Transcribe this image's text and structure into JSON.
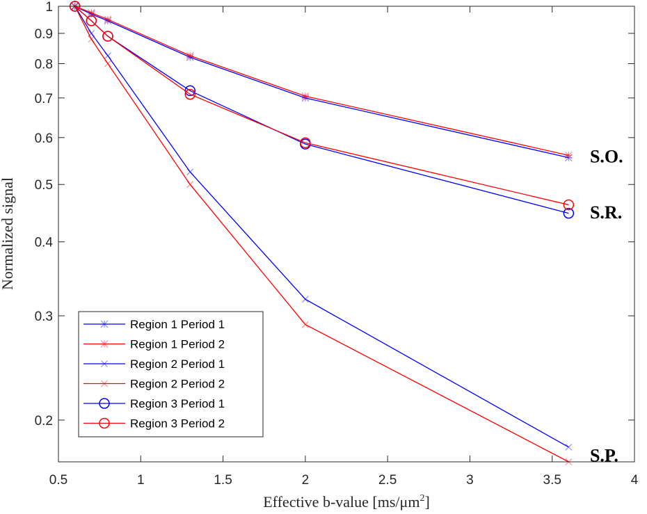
{
  "chart_data": {
    "type": "line",
    "xlabel": "Effective b-value [ms/μm",
    "xlabel_sup": "2",
    "xlabel_close": "]",
    "ylabel": "Normalized signal",
    "yscale": "log",
    "xlim": [
      0.5,
      4
    ],
    "ylim": [
      0.17,
      1
    ],
    "xticks": [
      0.5,
      1,
      1.5,
      2,
      2.5,
      3,
      3.5,
      4
    ],
    "xtick_labels": [
      "0.5",
      "1",
      "1.5",
      "2",
      "2.5",
      "3",
      "3.5",
      "4"
    ],
    "yticks": [
      0.2,
      0.3,
      0.4,
      0.5,
      0.6,
      0.7,
      0.8,
      0.9,
      1
    ],
    "ytick_labels": [
      "0.2",
      "0.3",
      "0.4",
      "0.5",
      "0.6",
      "0.7",
      "0.8",
      "0.9",
      "1"
    ],
    "legend_position": "bottom-left",
    "series": [
      {
        "name": "Region 1 Period 1",
        "color": "#0000ff",
        "marker": "asterisk",
        "x": [
          0.6,
          0.7,
          0.8,
          1.3,
          2.0,
          3.6
        ],
        "y": [
          1.0,
          0.97,
          0.945,
          0.82,
          0.7,
          0.555
        ]
      },
      {
        "name": "Region 1 Period 2",
        "color": "#ff0000",
        "marker": "asterisk",
        "x": [
          0.6,
          0.7,
          0.8,
          1.3,
          2.0,
          3.6
        ],
        "y": [
          1.0,
          0.975,
          0.95,
          0.825,
          0.705,
          0.56
        ]
      },
      {
        "name": "Region 2 Period 1",
        "color": "#0000ff",
        "marker": "x",
        "x": [
          0.6,
          0.7,
          0.8,
          1.3,
          2.0,
          3.6
        ],
        "y": [
          1.0,
          0.9,
          0.825,
          0.525,
          0.32,
          0.18
        ]
      },
      {
        "name": "Region 2 Period 2",
        "color": "#ff0000",
        "marker": "x",
        "x": [
          0.6,
          0.7,
          0.8,
          1.3,
          2.0,
          3.6
        ],
        "y": [
          1.0,
          0.88,
          0.8,
          0.5,
          0.29,
          0.17
        ]
      },
      {
        "name": "Region 3 Period 1",
        "color": "#0000ff",
        "marker": "circle",
        "x": [
          0.6,
          0.7,
          0.8,
          1.3,
          2.0,
          3.6
        ],
        "y": [
          1.0,
          0.945,
          0.89,
          0.72,
          0.585,
          0.447
        ]
      },
      {
        "name": "Region 3 Period 2",
        "color": "#ff0000",
        "marker": "circle",
        "x": [
          0.6,
          0.7,
          0.8,
          1.3,
          2.0,
          3.6
        ],
        "y": [
          1.0,
          0.945,
          0.89,
          0.71,
          0.588,
          0.462
        ]
      }
    ],
    "annotations": [
      {
        "text": "S.O.",
        "x": 3.78,
        "y": 0.56
      },
      {
        "text": "S.R.",
        "x": 3.78,
        "y": 0.45
      },
      {
        "text": "S.P.",
        "x": 3.78,
        "y": 0.175
      }
    ]
  }
}
